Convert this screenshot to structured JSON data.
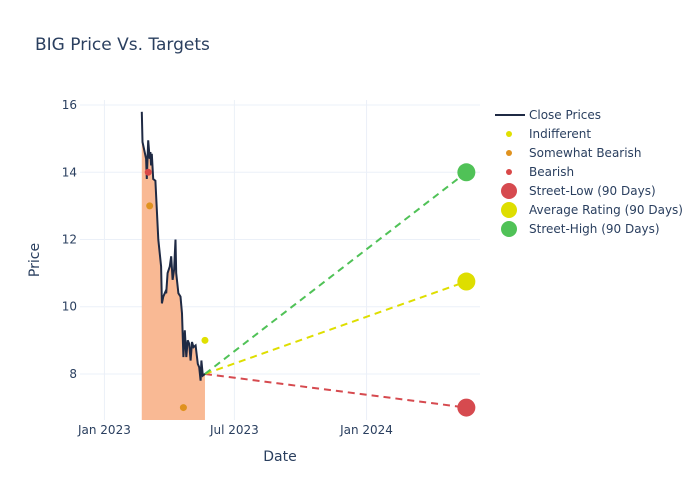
{
  "chart_data": {
    "type": "line",
    "title": "BIG Price Vs. Targets",
    "xlabel": "Date",
    "ylabel": "Price",
    "xlim": [
      "2022-11-28",
      "2024-06-07"
    ],
    "ylim": [
      6.63,
      16.15
    ],
    "x_ticks": [
      {
        "date": "2023-01-01",
        "label": "Jan 2023"
      },
      {
        "date": "2023-07-01",
        "label": "Jul 2023"
      },
      {
        "date": "2024-01-01",
        "label": "Jan 2024"
      }
    ],
    "y_ticks": [
      8,
      10,
      12,
      14,
      16
    ],
    "grid": true,
    "legend_position": "right",
    "close_prices": {
      "name": "Close Prices",
      "color": "#1f2a44",
      "fill_color": "#f9b994",
      "x": [
        "2023-02-22",
        "2023-02-23",
        "2023-02-28",
        "2023-03-01",
        "2023-03-03",
        "2023-03-05",
        "2023-03-06",
        "2023-03-07",
        "2023-03-08",
        "2023-03-10",
        "2023-03-13",
        "2023-03-15",
        "2023-03-17",
        "2023-03-21",
        "2023-03-22",
        "2023-03-24",
        "2023-03-27",
        "2023-03-28",
        "2023-03-30",
        "2023-04-02",
        "2023-04-04",
        "2023-04-06",
        "2023-04-08",
        "2023-04-10",
        "2023-04-11",
        "2023-04-14",
        "2023-04-17",
        "2023-04-19",
        "2023-04-21",
        "2023-04-23",
        "2023-04-25",
        "2023-04-27",
        "2023-04-29",
        "2023-05-01",
        "2023-05-03",
        "2023-05-05",
        "2023-05-08",
        "2023-05-11",
        "2023-05-13",
        "2023-05-15",
        "2023-05-16",
        "2023-05-18",
        "2023-05-21"
      ],
      "y": [
        15.8,
        14.9,
        14.4,
        13.8,
        14.95,
        14.4,
        14.6,
        14.2,
        14.55,
        13.8,
        13.75,
        12.9,
        12.0,
        11.2,
        10.1,
        10.3,
        10.45,
        10.4,
        11.0,
        11.2,
        11.5,
        10.8,
        11.1,
        12.0,
        11.0,
        10.4,
        10.3,
        9.8,
        8.5,
        9.3,
        8.5,
        9.0,
        8.9,
        8.4,
        8.95,
        8.8,
        8.85,
        8.3,
        8.2,
        7.8,
        8.4,
        7.95,
        8.0
      ]
    },
    "ratings": [
      {
        "name": "Indifferent",
        "color": "#e0e000",
        "points": [
          {
            "x": "2023-05-21",
            "y": 9
          }
        ]
      },
      {
        "name": "Somewhat Bearish",
        "color": "#e0921f",
        "points": [
          {
            "x": "2023-03-05",
            "y": 13
          },
          {
            "x": "2023-04-21",
            "y": 7
          }
        ]
      },
      {
        "name": "Bearish",
        "color": "#d94848",
        "points": [
          {
            "x": "2023-03-03",
            "y": 14
          }
        ]
      }
    ],
    "targets": {
      "origin": {
        "x": "2023-05-21",
        "y": 8.0
      },
      "date": "2024-05-19",
      "series": [
        {
          "name": "Street-Low (90 Days)",
          "color": "#d64a4f",
          "value": 7
        },
        {
          "name": "Average Rating (90 Days)",
          "color": "#dede00",
          "value": 10.75
        },
        {
          "name": "Street-High (90 Days)",
          "color": "#50c257",
          "value": 14
        }
      ]
    }
  }
}
